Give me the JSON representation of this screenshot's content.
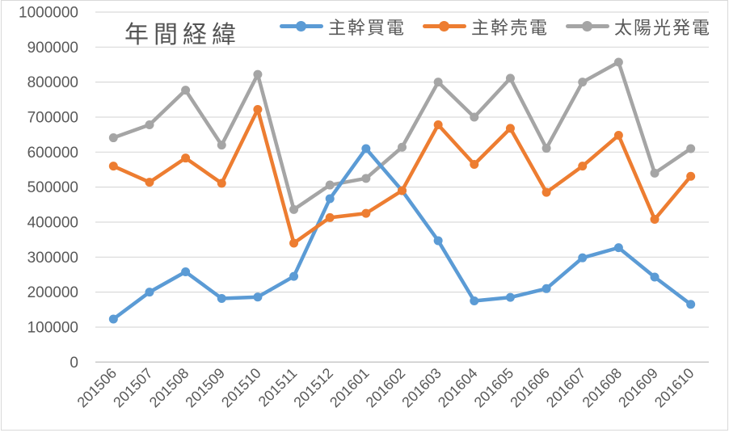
{
  "window": {
    "background": "#ffffff",
    "frame_border_color": "#d9d9d9"
  },
  "chart_data": {
    "type": "line",
    "title": "年間経緯",
    "categories": [
      "201506",
      "201507",
      "201508",
      "201509",
      "201510",
      "201511",
      "201512",
      "201601",
      "201602",
      "201603",
      "201604",
      "201605",
      "201606",
      "201607",
      "201608",
      "201609",
      "201610"
    ],
    "series": [
      {
        "name": "主幹買電",
        "color": "#5B9BD5",
        "values": [
          123000,
          200000,
          258000,
          182000,
          186000,
          245000,
          467000,
          610000,
          490000,
          347000,
          175000,
          185000,
          210000,
          298000,
          327000,
          243000,
          165000
        ]
      },
      {
        "name": "主幹売電",
        "color": "#ED7D31",
        "values": [
          560000,
          514000,
          583000,
          511000,
          722000,
          340000,
          413000,
          425000,
          490000,
          678000,
          565000,
          668000,
          485000,
          560000,
          648000,
          408000,
          531000
        ]
      },
      {
        "name": "太陽光発電",
        "color": "#A5A5A5",
        "values": [
          641000,
          678000,
          777000,
          620000,
          822000,
          436000,
          506000,
          525000,
          614000,
          800000,
          700000,
          811000,
          611000,
          800000,
          857000,
          540000,
          610000
        ]
      }
    ],
    "ylim": [
      0,
      1000000
    ],
    "ytick_step": 100000,
    "yticks": [
      "0",
      "100000",
      "200000",
      "300000",
      "400000",
      "500000",
      "600000",
      "700000",
      "800000",
      "900000",
      "1000000"
    ],
    "grid": "horizontal",
    "legend_position": "top",
    "xlabel": "",
    "ylabel": "",
    "x_label_rotation_deg": -45,
    "text_color": "#595959",
    "gridline_color": "#d9d9d9",
    "axis_line_color": "#c9c9c9",
    "draw_order": [
      2,
      0,
      1
    ]
  }
}
